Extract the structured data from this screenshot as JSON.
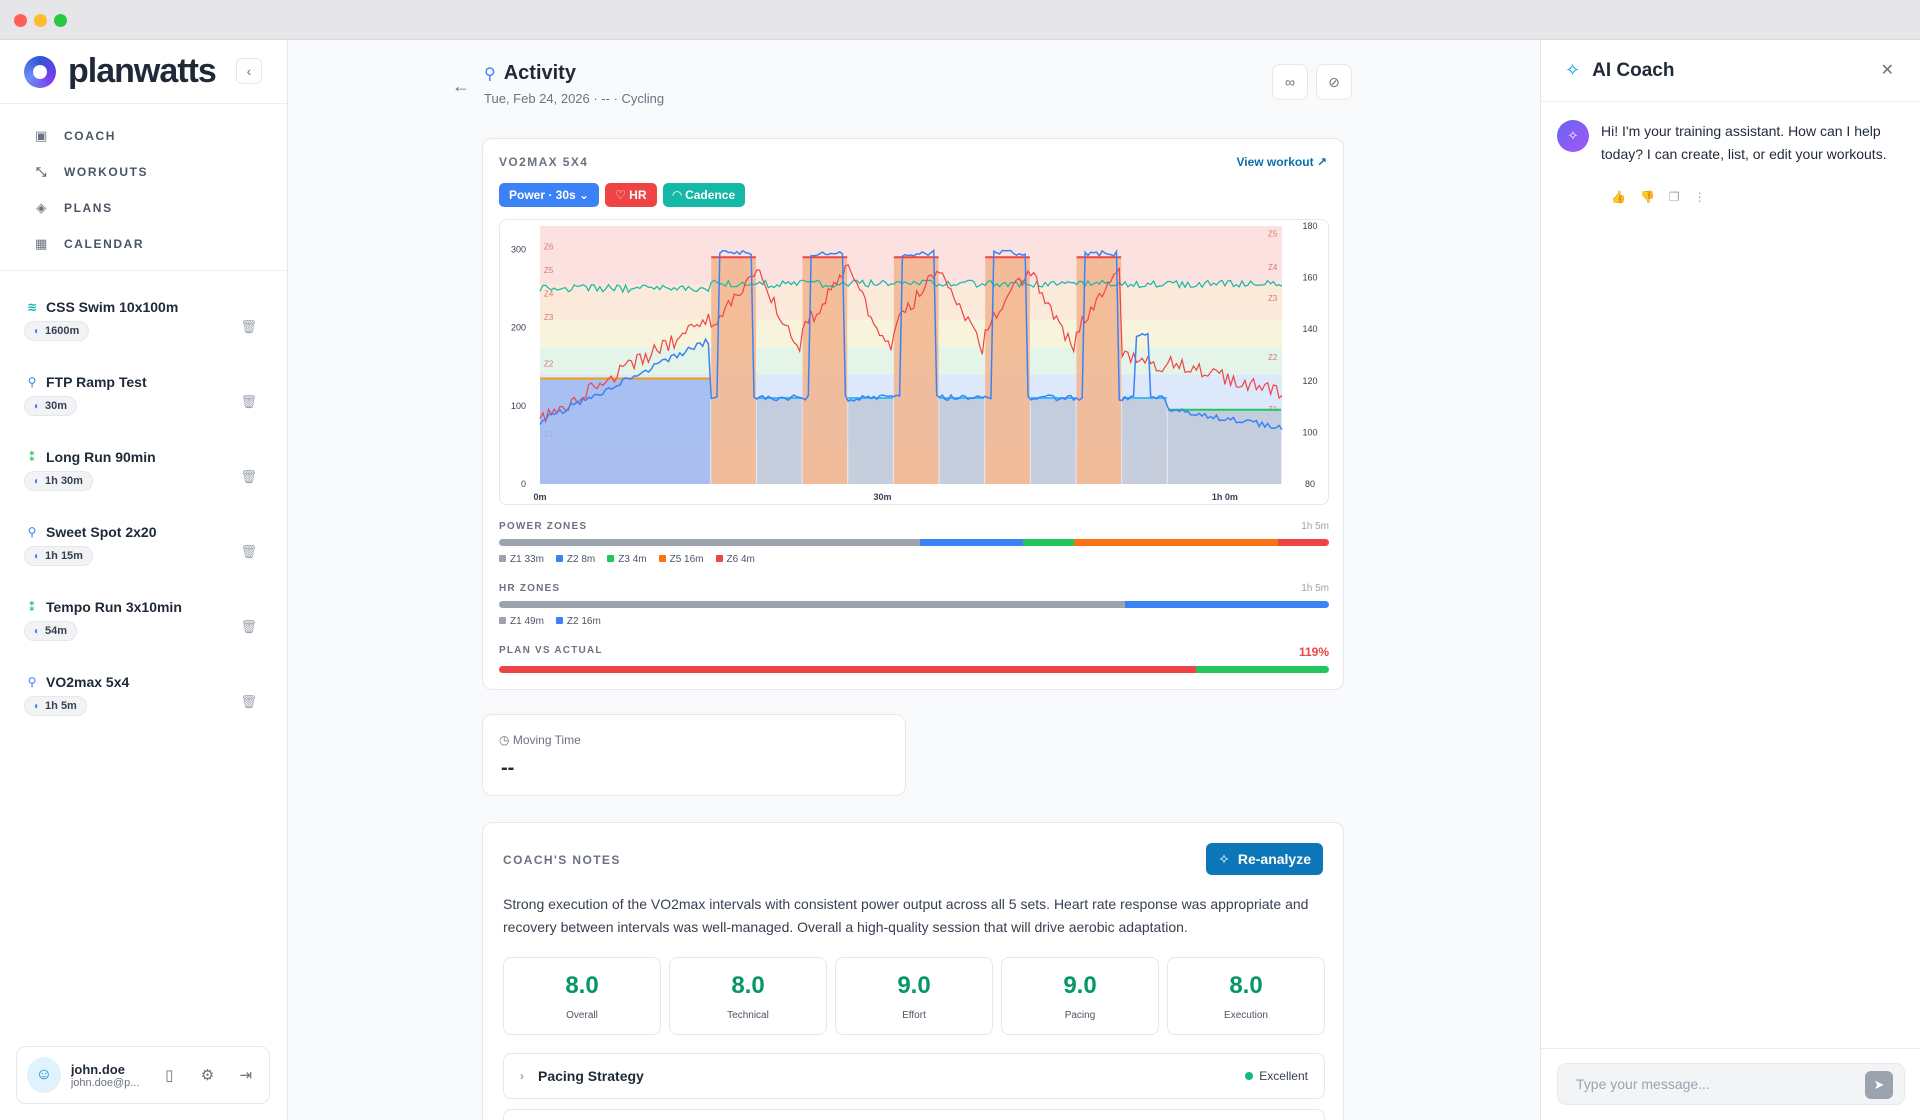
{
  "brand": {
    "name": "planwatts"
  },
  "nav": [
    {
      "label": "COACH",
      "icon": "robot-icon"
    },
    {
      "label": "WORKOUTS",
      "icon": "dumbbell-icon"
    },
    {
      "label": "PLANS",
      "icon": "layers-icon"
    },
    {
      "label": "CALENDAR",
      "icon": "calendar-icon"
    }
  ],
  "workouts": [
    {
      "title": "CSS Swim 10x100m",
      "badge": "1600m",
      "sport": "swim",
      "color": "#14b8a6"
    },
    {
      "title": "FTP Ramp Test",
      "badge": "30m",
      "sport": "bike",
      "color": "#3b82f6"
    },
    {
      "title": "Long Run 90min",
      "badge": "1h 30m",
      "sport": "run",
      "color": "#22c55e"
    },
    {
      "title": "Sweet Spot 2x20",
      "badge": "1h 15m",
      "sport": "bike",
      "color": "#3b82f6"
    },
    {
      "title": "Tempo Run 3x10min",
      "badge": "54m",
      "sport": "run",
      "color": "#22c55e"
    },
    {
      "title": "VO2max 5x4",
      "badge": "1h 5m",
      "sport": "bike",
      "color": "#3b82f6"
    }
  ],
  "user": {
    "name": "john.doe",
    "email": "john.doe@p..."
  },
  "activity": {
    "title": "Activity",
    "subtitle": "Tue, Feb 24, 2026 · -- · Cycling"
  },
  "chart_card": {
    "label": "VO2MAX 5X4",
    "view_workout": "View workout",
    "pills": [
      {
        "label": "Power · 30s ⌄",
        "color": "#3b82f6"
      },
      {
        "label": "♡ HR",
        "color": "#ef4444"
      },
      {
        "label": "◠ Cadence",
        "color": "#14b8a6"
      }
    ]
  },
  "chart_data": {
    "type": "line",
    "x_ticks": [
      "0m",
      "30m",
      "1h 0m"
    ],
    "x_range_min": [
      0,
      65
    ],
    "y_left_ticks": [
      0,
      100,
      200,
      300
    ],
    "y_left_range": [
      0,
      330
    ],
    "y_right_ticks": [
      80,
      100,
      120,
      140,
      160,
      180
    ],
    "y_right_range": [
      80,
      180
    ],
    "zone_labels_left": [
      "Z6",
      "Z5",
      "Z4",
      "Z3",
      "Z2",
      "Z1"
    ],
    "zone_labels_right": [
      "Z5",
      "Z4",
      "Z3",
      "Z2",
      "Z1"
    ],
    "plan_segments": [
      {
        "start": 0,
        "end": 15,
        "watts": 135,
        "zone": "Z2"
      },
      {
        "start": 15,
        "end": 19,
        "watts": 290,
        "zone": "Z5"
      },
      {
        "start": 19,
        "end": 23,
        "watts": 110,
        "zone": "Z1"
      },
      {
        "start": 23,
        "end": 27,
        "watts": 290,
        "zone": "Z5"
      },
      {
        "start": 27,
        "end": 31,
        "watts": 110,
        "zone": "Z1"
      },
      {
        "start": 31,
        "end": 35,
        "watts": 290,
        "zone": "Z5"
      },
      {
        "start": 35,
        "end": 39,
        "watts": 110,
        "zone": "Z1"
      },
      {
        "start": 39,
        "end": 43,
        "watts": 290,
        "zone": "Z5"
      },
      {
        "start": 43,
        "end": 47,
        "watts": 110,
        "zone": "Z1"
      },
      {
        "start": 47,
        "end": 51,
        "watts": 290,
        "zone": "Z5"
      },
      {
        "start": 51,
        "end": 55,
        "watts": 110,
        "zone": "Z1"
      },
      {
        "start": 55,
        "end": 65,
        "watts": 95,
        "zone": "Z1"
      }
    ],
    "series": [
      {
        "name": "Power",
        "axis": "left",
        "color": "#3b82f6"
      },
      {
        "name": "HR",
        "axis": "right",
        "color": "#ef4444"
      },
      {
        "name": "Cadence",
        "axis": "left",
        "color": "#14b8a6"
      }
    ]
  },
  "power_zones": {
    "label": "POWER ZONES",
    "total": "1h 5m",
    "segments": [
      {
        "label": "Z1 33m",
        "minutes": 33,
        "color": "#9ca3af"
      },
      {
        "label": "Z2 8m",
        "minutes": 8,
        "color": "#3b82f6"
      },
      {
        "label": "Z3 4m",
        "minutes": 4,
        "color": "#22c55e"
      },
      {
        "label": "Z5 16m",
        "minutes": 16,
        "color": "#f97316"
      },
      {
        "label": "Z6 4m",
        "minutes": 4,
        "color": "#ef4444"
      }
    ]
  },
  "hr_zones": {
    "label": "HR ZONES",
    "total": "1h 5m",
    "segments": [
      {
        "label": "Z1 49m",
        "minutes": 49,
        "color": "#9ca3af"
      },
      {
        "label": "Z2 16m",
        "minutes": 16,
        "color": "#3b82f6"
      }
    ]
  },
  "plan_vs_actual": {
    "label": "PLAN VS ACTUAL",
    "value": "119%",
    "value_color": "#ef4444"
  },
  "moving_time": {
    "label": "Moving Time",
    "value": "--"
  },
  "coach_notes": {
    "label": "COACH'S NOTES",
    "reanalyze": "Re-analyze",
    "text": "Strong execution of the VO2max intervals with consistent power output across all 5 sets. Heart rate response was appropriate and recovery between intervals was well-managed. Overall a high-quality session that will drive aerobic adaptation.",
    "scores": [
      {
        "value": "8.0",
        "label": "Overall"
      },
      {
        "value": "8.0",
        "label": "Technical"
      },
      {
        "value": "9.0",
        "label": "Effort"
      },
      {
        "value": "9.0",
        "label": "Pacing"
      },
      {
        "value": "8.0",
        "label": "Execution"
      }
    ],
    "accordion": {
      "title": "Pacing Strategy",
      "status": "Excellent"
    }
  },
  "ai_coach": {
    "title": "AI Coach",
    "message": "Hi! I'm your training assistant. How can I help today? I can create, list, or edit your workouts.",
    "placeholder": "Type your message..."
  }
}
